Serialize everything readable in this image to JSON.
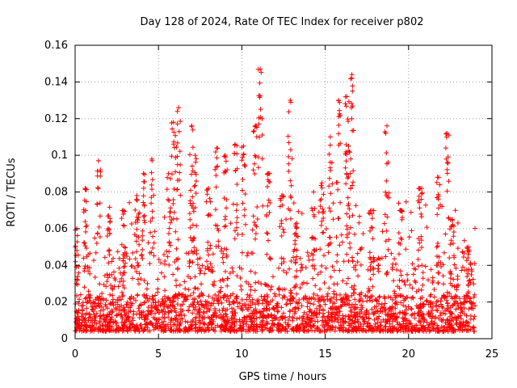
{
  "chart_data": {
    "type": "scatter",
    "title": "Day 128 of 2024, Rate Of TEC Index for receiver p802",
    "xlabel": "GPS time / hours",
    "ylabel": "ROTI / TECUs",
    "xlim": [
      0,
      25
    ],
    "ylim": [
      0,
      0.16
    ],
    "xticks": [
      "0",
      "5",
      "10",
      "15",
      "20",
      "25"
    ],
    "yticks": [
      "0",
      "0.02",
      "0.04",
      "0.06",
      "0.08",
      "0.1",
      "0.12",
      "0.14",
      "0.16"
    ],
    "grid": true,
    "legend": "none",
    "marker": "plus",
    "color": "#ff0000",
    "x_coverage": [
      0,
      24
    ],
    "peaks": [
      {
        "x": 0.1,
        "y": 0.06
      },
      {
        "x": 0.6,
        "y": 0.082
      },
      {
        "x": 1.4,
        "y": 0.097
      },
      {
        "x": 2.0,
        "y": 0.067
      },
      {
        "x": 2.9,
        "y": 0.07
      },
      {
        "x": 3.7,
        "y": 0.078
      },
      {
        "x": 4.1,
        "y": 0.09
      },
      {
        "x": 4.6,
        "y": 0.098
      },
      {
        "x": 5.6,
        "y": 0.09
      },
      {
        "x": 5.9,
        "y": 0.118
      },
      {
        "x": 6.2,
        "y": 0.126
      },
      {
        "x": 7.0,
        "y": 0.116
      },
      {
        "x": 7.2,
        "y": 0.1
      },
      {
        "x": 8.0,
        "y": 0.082
      },
      {
        "x": 8.5,
        "y": 0.104
      },
      {
        "x": 9.0,
        "y": 0.1
      },
      {
        "x": 9.6,
        "y": 0.106
      },
      {
        "x": 10.1,
        "y": 0.105
      },
      {
        "x": 10.8,
        "y": 0.116
      },
      {
        "x": 11.1,
        "y": 0.147
      },
      {
        "x": 11.6,
        "y": 0.09
      },
      {
        "x": 12.4,
        "y": 0.078
      },
      {
        "x": 12.9,
        "y": 0.13
      },
      {
        "x": 13.3,
        "y": 0.063
      },
      {
        "x": 14.3,
        "y": 0.08
      },
      {
        "x": 14.8,
        "y": 0.085
      },
      {
        "x": 15.3,
        "y": 0.11
      },
      {
        "x": 15.8,
        "y": 0.13
      },
      {
        "x": 16.3,
        "y": 0.132
      },
      {
        "x": 16.6,
        "y": 0.144
      },
      {
        "x": 16.4,
        "y": 0.105
      },
      {
        "x": 17.8,
        "y": 0.07
      },
      {
        "x": 18.7,
        "y": 0.116
      },
      {
        "x": 19.5,
        "y": 0.07
      },
      {
        "x": 20.7,
        "y": 0.082
      },
      {
        "x": 21.8,
        "y": 0.088
      },
      {
        "x": 22.3,
        "y": 0.112
      },
      {
        "x": 22.6,
        "y": 0.065
      },
      {
        "x": 23.6,
        "y": 0.05
      }
    ]
  }
}
